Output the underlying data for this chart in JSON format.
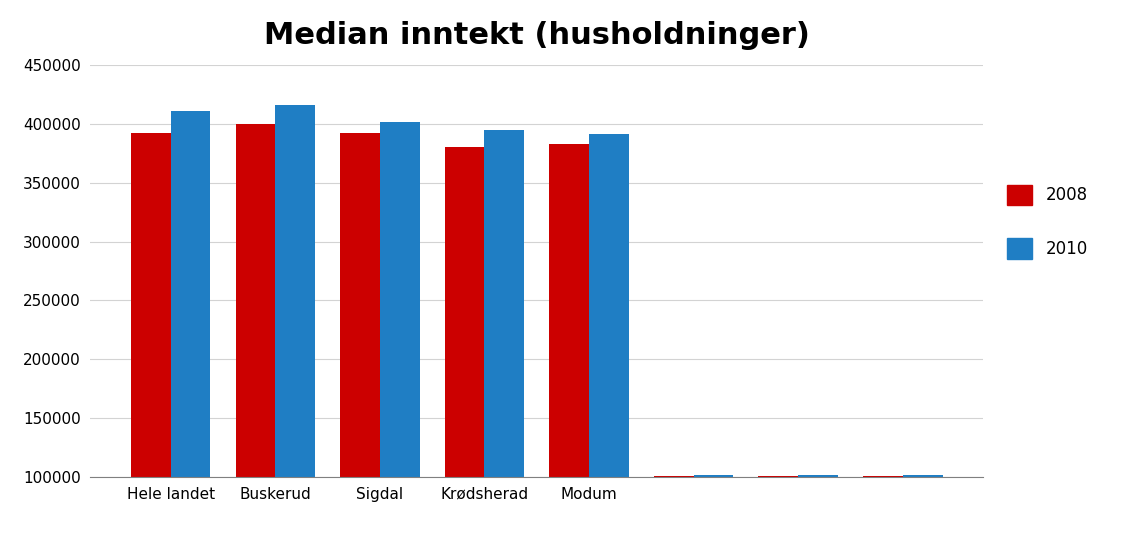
{
  "title": "Median inntekt (husholdninger)",
  "categories": [
    "Hele landet",
    "Buskerud",
    "Sigdal",
    "Krødsherad",
    "Modum",
    "",
    "",
    ""
  ],
  "values_2008": [
    392000,
    400000,
    392000,
    380000,
    383000,
    101000,
    101000,
    101000
  ],
  "values_2010": [
    411000,
    416000,
    402000,
    395000,
    391000,
    102000,
    102000,
    102000
  ],
  "color_2008": "#cc0000",
  "color_2010": "#1f7ec4",
  "ylim_min": 100000,
  "ylim_max": 450000,
  "yticks": [
    100000,
    150000,
    200000,
    250000,
    300000,
    350000,
    400000,
    450000
  ],
  "legend_labels": [
    "2008",
    "2010"
  ],
  "background_color": "#ffffff",
  "title_fontsize": 22,
  "tick_fontsize": 11,
  "legend_fontsize": 12
}
